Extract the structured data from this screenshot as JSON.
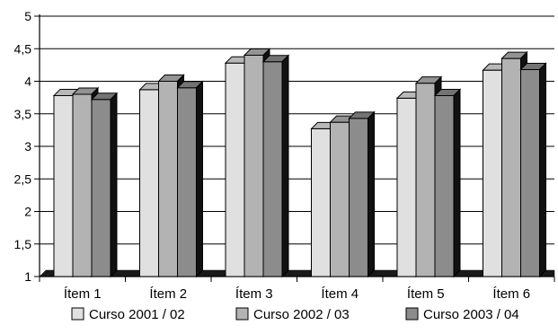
{
  "chart_data": {
    "type": "bar",
    "style": "3d-clustered-column",
    "categories": [
      "Ítem 1",
      "Ítem 2",
      "Ítem 3",
      "Ítem 4",
      "Ítem 5",
      "Ítem 6"
    ],
    "series": [
      {
        "name": "Curso 2001 / 02",
        "color": "#e0e0e0",
        "values": [
          3.78,
          3.87,
          4.28,
          3.27,
          3.74,
          4.17
        ]
      },
      {
        "name": "Curso 2002 / 03",
        "color": "#b3b3b3",
        "values": [
          3.8,
          4.0,
          4.4,
          3.37,
          3.97,
          4.35
        ]
      },
      {
        "name": "Curso 2003 / 04",
        "color": "#8c8c8c",
        "values": [
          3.72,
          3.9,
          4.3,
          3.43,
          3.78,
          4.18
        ]
      }
    ],
    "y_ticks": [
      "1",
      "1,5",
      "2",
      "2,5",
      "3",
      "3,5",
      "4",
      "4,5",
      "5"
    ],
    "ylim": [
      1,
      5
    ],
    "grid": true,
    "legend_position": "bottom",
    "title": "",
    "xlabel": "",
    "ylabel": ""
  }
}
